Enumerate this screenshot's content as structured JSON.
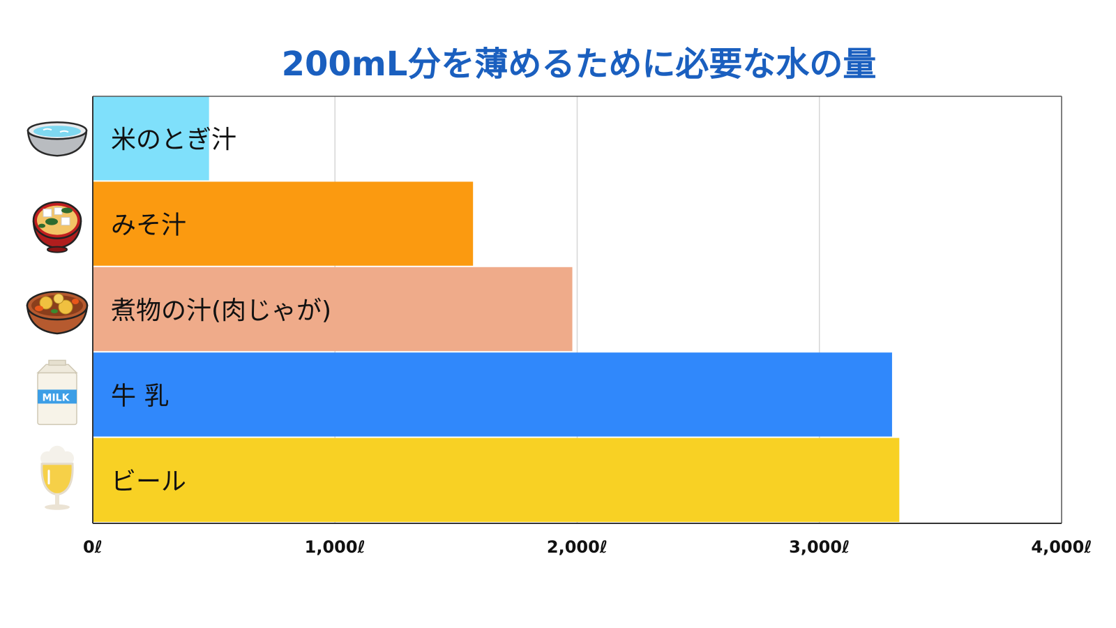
{
  "chart_data": {
    "type": "bar",
    "orientation": "horizontal",
    "title": "200mL分を薄めるために必要な水の量",
    "title_color": "#1a5fbf",
    "categories": [
      "米のとぎ汁",
      "みそ汁",
      "煮物の汁(肉じゃが)",
      "牛 乳",
      "ビール"
    ],
    "values": [
      480,
      1570,
      1980,
      3300,
      3330
    ],
    "colors": [
      "#7fe0fb",
      "#fb9a10",
      "#efab8a",
      "#3088fb",
      "#f8d124"
    ],
    "icons": [
      "rice-water-bowl-icon",
      "miso-soup-bowl-icon",
      "nikujaga-bowl-icon",
      "milk-carton-icon",
      "beer-glass-icon"
    ],
    "milk_carton_text": "MILK",
    "xlim": [
      0,
      4000
    ],
    "xticks": [
      0,
      1000,
      2000,
      3000,
      4000
    ],
    "xtick_labels": [
      "0ℓ",
      "1,000ℓ",
      "2,000ℓ",
      "3,000ℓ",
      "4,000ℓ"
    ],
    "grid": true,
    "xlabel": "",
    "ylabel": ""
  }
}
